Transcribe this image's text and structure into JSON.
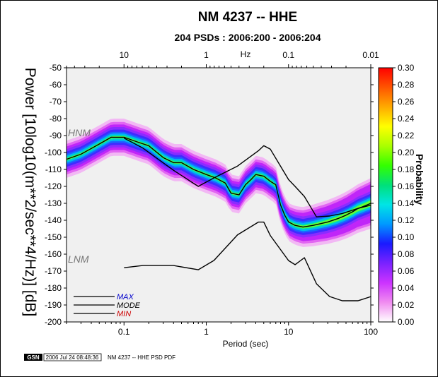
{
  "header": {
    "title": "NM 4237 -- HHE",
    "subtitle": "204 PSDs : 2006:200 - 2006:204"
  },
  "footer": {
    "logo_text": "GSN",
    "timestamp": "2006 Jul 24 08:48:36",
    "caption": "NM 4237 -- HHE PSD PDF"
  },
  "legend": {
    "items": [
      {
        "label": "MAX",
        "color": "#0000cc"
      },
      {
        "label": "MODE",
        "color": "#000000"
      },
      {
        "label": "MIN",
        "color": "#cc0000"
      }
    ]
  },
  "noise_models": {
    "hnm_label": "HNM",
    "lnm_label": "LNM"
  },
  "colorbar": {
    "label": "Probability",
    "ticks": [
      "0.00",
      "0.02",
      "0.04",
      "0.06",
      "0.08",
      "0.10",
      "0.12",
      "0.14",
      "0.16",
      "0.18",
      "0.20",
      "0.22",
      "0.24",
      "0.26",
      "0.28",
      "0.30"
    ],
    "range": [
      0,
      0.3
    ],
    "colors": [
      "#ffffff",
      "#f08cf0",
      "#cc33ff",
      "#7a22ff",
      "#1a1aff",
      "#0099ff",
      "#00e5e5",
      "#00e07a",
      "#33ff00",
      "#aaff00",
      "#ffff00",
      "#ffaa00",
      "#ff5500",
      "#ff0000"
    ]
  },
  "chart_data": {
    "type": "heatmap",
    "title": "NM 4237 -- HHE",
    "subtitle": "204 PSDs : 2006:200 - 2006:204",
    "xlabel": "Period (sec)",
    "ylabel": "Power [10log10(m**2/sec**4/Hz)] [dB]",
    "x_scale": "log",
    "xlim": [
      0.02,
      100
    ],
    "ylim": [
      -200,
      -50
    ],
    "x_ticks": [
      "0.1",
      "1",
      "10",
      "100"
    ],
    "x_tick_values": [
      0.1,
      1,
      10,
      100
    ],
    "top_axis": {
      "label": "Hz",
      "ticks": [
        "10",
        "1",
        "0.1",
        "0.01"
      ],
      "frequency_values": [
        10,
        1,
        0.1,
        0.01
      ]
    },
    "y_ticks": [
      "-50",
      "-60",
      "-70",
      "-80",
      "-90",
      "-100",
      "-110",
      "-120",
      "-130",
      "-140",
      "-150",
      "-160",
      "-170",
      "-180",
      "-190",
      "-200"
    ],
    "y_tick_values": [
      -50,
      -60,
      -70,
      -80,
      -90,
      -100,
      -110,
      -120,
      -130,
      -140,
      -150,
      -160,
      -170,
      -180,
      -190,
      -200
    ],
    "series": [
      {
        "name": "MODE",
        "x": [
          0.02,
          0.03,
          0.05,
          0.07,
          0.1,
          0.15,
          0.2,
          0.3,
          0.4,
          0.5,
          0.7,
          1,
          1.3,
          1.7,
          2,
          2.5,
          3,
          3.5,
          4,
          5,
          6,
          7,
          8,
          9,
          10,
          12,
          15,
          20,
          30,
          40,
          50,
          60,
          70,
          80,
          100
        ],
        "y": [
          -104,
          -101,
          -95,
          -91,
          -91,
          -94,
          -96,
          -103,
          -106,
          -106,
          -110,
          -113,
          -115,
          -118,
          -124,
          -125,
          -119,
          -116,
          -113,
          -114,
          -117,
          -119,
          -131,
          -137,
          -141,
          -143,
          -144,
          -143,
          -141,
          -139,
          -137,
          -135,
          -133,
          -132,
          -130
        ]
      },
      {
        "name": "HNM",
        "x": [
          0.1,
          0.17,
          0.4,
          0.8,
          1.24,
          2.4,
          4.3,
          5,
          6,
          10,
          12,
          15.6,
          21.9,
          31.6,
          45,
          70,
          101
        ],
        "y": [
          -91.5,
          -97.4,
          -110.5,
          -120,
          -115,
          -108,
          -99,
          -96,
          -98,
          -116,
          -120,
          -126,
          -138,
          -137.5,
          -136,
          -133,
          -131
        ]
      },
      {
        "name": "LNM",
        "x": [
          0.1,
          0.17,
          0.4,
          0.8,
          1.24,
          2.4,
          4.3,
          5,
          6,
          10,
          12,
          15.6,
          21.9,
          31.6,
          45,
          70,
          101
        ],
        "y": [
          -168,
          -166.7,
          -166.7,
          -169.2,
          -163.7,
          -148.6,
          -141.1,
          -141.1,
          -149,
          -163.8,
          -166.2,
          -162.1,
          -177.5,
          -185,
          -187.5,
          -187.5,
          -185
        ]
      }
    ]
  }
}
